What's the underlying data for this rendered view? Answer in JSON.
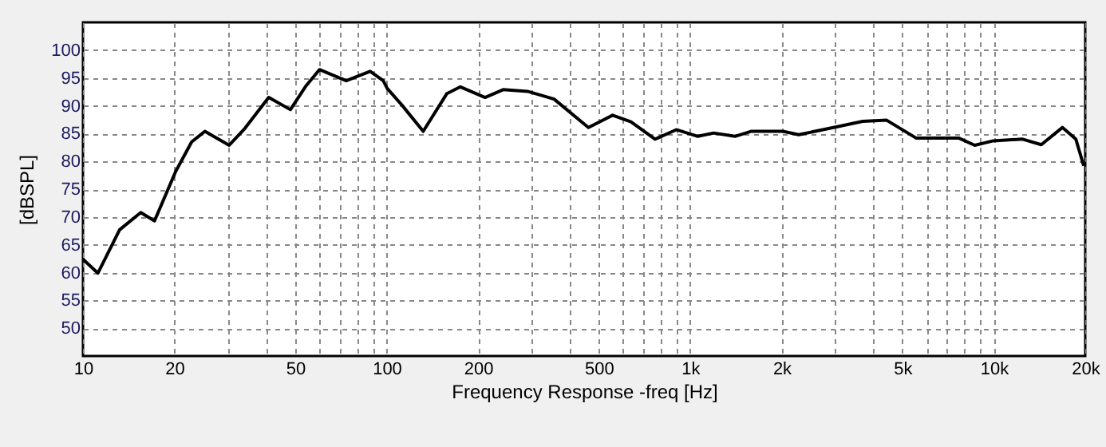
{
  "chart_data": {
    "type": "line",
    "xlabel": "Frequency Response -freq [Hz]",
    "ylabel": "[dBSPL]",
    "log": "x",
    "grid": true,
    "line_style": "solid",
    "marker": "none",
    "xlim": [
      10,
      20000
    ],
    "ylim": [
      45,
      105
    ],
    "xticks": [
      10,
      20,
      {
        "value": 30,
        "label": null
      },
      {
        "value": 40,
        "label": null
      },
      50,
      {
        "value": 60,
        "label": null
      },
      {
        "value": 70,
        "label": null
      },
      {
        "value": 80,
        "label": null
      },
      {
        "value": 90,
        "label": null
      },
      100,
      200,
      {
        "value": 300,
        "label": null
      },
      {
        "value": 400,
        "label": null
      },
      500,
      {
        "value": 600,
        "label": null
      },
      {
        "value": 700,
        "label": null
      },
      {
        "value": 800,
        "label": null
      },
      {
        "value": 900,
        "label": null
      },
      {
        "value": 1000,
        "label": "1k"
      },
      {
        "value": 2000,
        "label": "2k"
      },
      {
        "value": 3000,
        "label": null
      },
      {
        "value": 4000,
        "label": null
      },
      {
        "value": 5000,
        "label": "5k"
      },
      {
        "value": 6000,
        "label": null
      },
      {
        "value": 7000,
        "label": null
      },
      {
        "value": 8000,
        "label": null
      },
      {
        "value": 9000,
        "label": null
      },
      {
        "value": 10000,
        "label": "10k"
      },
      {
        "value": 20000,
        "label": "20k"
      }
    ],
    "yticks": [
      50,
      55,
      60,
      65,
      70,
      75,
      80,
      85,
      90,
      95,
      100
    ],
    "series": [
      {
        "color": "#000000",
        "x": [
          10,
          11.2,
          13.2,
          15.5,
          17.2,
          20.2,
          22.8,
          25.2,
          30.3,
          34.1,
          40.9,
          48.2,
          54.3,
          60.1,
          73.6,
          88.3,
          97.5,
          100.5,
          112,
          132,
          158,
          175,
          211,
          242,
          291,
          356,
          462,
          555,
          638,
          766,
          900,
          1059,
          1195,
          1404,
          1585,
          2018,
          2278,
          3027,
          3700,
          4437,
          5541,
          6518,
          7656,
          8650,
          9960,
          12440,
          14330,
          16830,
          18620,
          19770
        ],
        "values": [
          62.4,
          59.9,
          67.7,
          70.8,
          69.3,
          78.2,
          83.5,
          85.4,
          82.9,
          85.9,
          91.5,
          89.3,
          93.6,
          96.5,
          94.5,
          96.2,
          94.5,
          93.1,
          90.2,
          85.4,
          92.2,
          93.4,
          91.5,
          92.9,
          92.6,
          91.2,
          86.1,
          88.3,
          87.1,
          84.0,
          85.7,
          84.5,
          85.1,
          84.5,
          85.4,
          85.4,
          84.8,
          86.2,
          87.2,
          87.4,
          84.2,
          84.2,
          84.2,
          82.9,
          83.7,
          84.0,
          83.0,
          86.1,
          84.0,
          79.2
        ]
      }
    ]
  }
}
